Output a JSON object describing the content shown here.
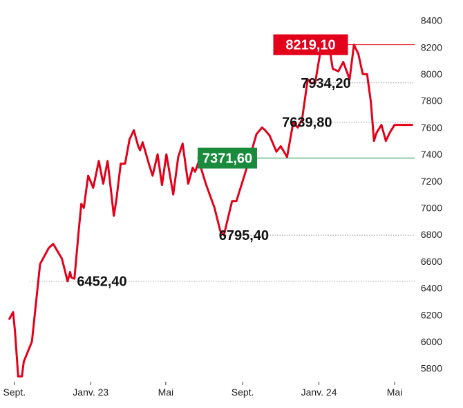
{
  "chart_data": {
    "type": "line",
    "title": "",
    "xlabel": "",
    "ylabel": "",
    "ylim": [
      5700,
      8450
    ],
    "yticks": [
      5800,
      6000,
      6200,
      6400,
      6600,
      6800,
      7000,
      7200,
      7400,
      7600,
      7800,
      8000,
      8200,
      8400
    ],
    "xticks": [
      {
        "label": "Sept.",
        "date": "2022-09-01"
      },
      {
        "label": "Janv. 23",
        "date": "2023-01-01"
      },
      {
        "label": "Mai",
        "date": "2023-05-01"
      },
      {
        "label": "Sept.",
        "date": "2023-09-01"
      },
      {
        "label": "Janv. 24",
        "date": "2024-01-01"
      },
      {
        "label": "Mai",
        "date": "2024-05-01"
      }
    ],
    "xlim": [
      "2022-08-20",
      "2024-06-02"
    ],
    "grid": false,
    "series": [
      {
        "color": "#e2001a",
        "x": [
          "2022-08-24",
          "2022-08-30",
          "2022-09-02",
          "2022-09-07",
          "2022-09-13",
          "2022-09-16",
          "2022-09-29",
          "2022-10-12",
          "2022-10-26",
          "2022-11-02",
          "2022-11-16",
          "2022-11-25",
          "2022-11-29",
          "2022-12-01",
          "2022-12-06",
          "2022-12-13",
          "2022-12-17",
          "2022-12-21",
          "2022-12-28",
          "2023-01-05",
          "2023-01-14",
          "2023-01-21",
          "2023-01-28",
          "2023-02-01",
          "2023-02-07",
          "2023-02-11",
          "2023-02-18",
          "2023-02-25",
          "2023-03-04",
          "2023-03-11",
          "2023-03-18",
          "2023-03-21",
          "2023-03-25",
          "2023-04-04",
          "2023-04-10",
          "2023-04-18",
          "2023-04-25",
          "2023-05-02",
          "2023-05-13",
          "2023-05-21",
          "2023-05-28",
          "2023-06-02",
          "2023-06-06",
          "2023-06-13",
          "2023-06-17",
          "2023-06-23",
          "2023-07-04",
          "2023-07-18",
          "2023-07-27",
          "2023-08-02",
          "2023-08-15",
          "2023-08-22",
          "2023-09-05",
          "2023-09-12",
          "2023-09-23",
          "2023-10-02",
          "2023-10-07",
          "2023-10-14",
          "2023-10-25",
          "2023-11-01",
          "2023-11-11",
          "2023-11-21",
          "2023-11-28",
          "2023-12-05",
          "2023-12-14",
          "2023-12-19",
          "2023-12-26",
          "2024-01-03",
          "2024-01-09",
          "2024-01-17",
          "2024-01-23",
          "2024-02-01",
          "2024-02-09",
          "2024-02-19",
          "2024-02-26",
          "2024-03-04",
          "2024-03-11",
          "2024-03-18",
          "2024-03-24",
          "2024-03-29",
          "2024-04-02",
          "2024-04-10",
          "2024-04-17",
          "2024-04-23",
          "2024-05-01",
          "2024-05-08",
          "2024-05-15",
          "2024-05-21",
          "2024-05-29"
        ],
        "y": [
          6170,
          6220,
          6070,
          5740,
          5740,
          5850,
          6000,
          6580,
          6700,
          6730,
          6620,
          6450,
          6520,
          6480,
          6470,
          6840,
          7030,
          7000,
          7240,
          7150,
          7350,
          7180,
          7350,
          7190,
          6940,
          7060,
          7330,
          7330,
          7510,
          7580,
          7460,
          7430,
          7490,
          7330,
          7240,
          7400,
          7170,
          7400,
          7100,
          7380,
          7480,
          7310,
          7180,
          7300,
          7270,
          7350,
          7180,
          7000,
          6830,
          6795,
          7050,
          7050,
          7260,
          7371,
          7550,
          7600,
          7580,
          7540,
          7420,
          7460,
          7380,
          7640,
          7600,
          7660,
          7960,
          7934,
          7934,
          8160,
          8150,
          8219,
          8040,
          8020,
          8090,
          7960,
          8219,
          8150,
          8000,
          8000,
          7790,
          7500,
          7560,
          7620,
          7500,
          7560,
          7620,
          7620,
          7620,
          7620,
          7620
        ]
      }
    ],
    "annotations": [
      {
        "label": "8219,10",
        "value": 8219.1,
        "style": "red-box",
        "line_from": "2024-01-09",
        "line_to": "2024-06-02",
        "line": "solid",
        "label_at": "2023-10-20"
      },
      {
        "label": "7934,20",
        "value": 7934.2,
        "style": "plain",
        "line_from": "2023-12-19",
        "line_to": "2024-06-02",
        "line": "dotted",
        "label_at": "2023-12-03"
      },
      {
        "label": "7639,80",
        "value": 7639.8,
        "style": "plain",
        "line_from": "2023-11-21",
        "line_to": "2024-06-02",
        "line": "dotted",
        "label_at": "2023-11-03"
      },
      {
        "label": "7371,60",
        "value": 7371.6,
        "style": "green-box",
        "line_from": "2023-06-20",
        "line_to": "2024-06-02",
        "line": "solid",
        "label_at": "2023-06-21"
      },
      {
        "label": "6795,40",
        "value": 6795.4,
        "style": "plain",
        "line_from": "2023-08-02",
        "line_to": "2024-06-02",
        "line": "dotted",
        "label_at": "2023-07-25"
      },
      {
        "label": "6452,40",
        "value": 6452.4,
        "style": "plain",
        "line_from": "2022-09-25",
        "line_to": "2024-06-02",
        "line": "dotted",
        "label_at": "2022-12-10"
      }
    ]
  },
  "colors": {
    "line": "#e2001a",
    "red_box": "#e2001a",
    "green_box": "#1a8a3c",
    "green_line": "#1a8a3c",
    "tick_text": "#222222",
    "label_text": "#111111",
    "dotted_line": "#999999",
    "axis_line": "#333333"
  }
}
